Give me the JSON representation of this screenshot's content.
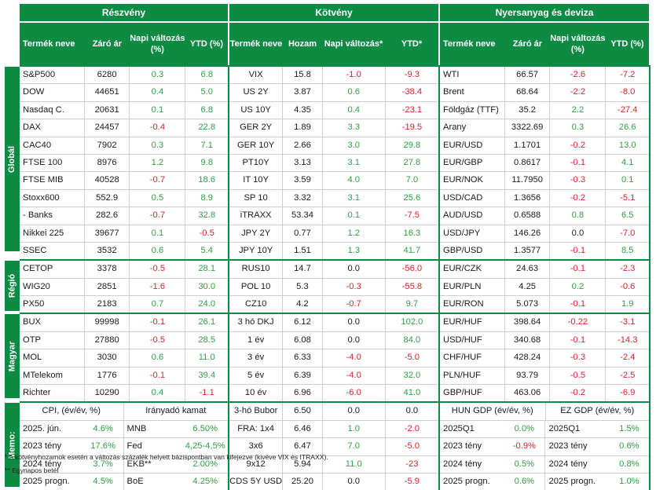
{
  "headers": {
    "stocks": "Részvény",
    "bonds": "Kötvény",
    "commodities": "Nyersanyag és deviza"
  },
  "subheaders": {
    "stocks": [
      "Termék neve",
      "Záró ár",
      "Napi változás (%)",
      "YTD (%)"
    ],
    "bonds": [
      "Termék neve",
      "Hozam",
      "Napi változás*",
      "YTD*"
    ],
    "commodities": [
      "Termék neve",
      "Záró ár",
      "Napi változás (%)",
      "YTD (%)"
    ]
  },
  "sections": [
    {
      "label": "Globál",
      "rows": [
        {
          "s": [
            "S&P500",
            "6280",
            "0.3",
            "6.8"
          ],
          "b": [
            "VIX",
            "15.8",
            "-1.0",
            "-9.3"
          ],
          "c": [
            "WTI",
            "66.57",
            "-2.6",
            "-7.2"
          ]
        },
        {
          "s": [
            "DOW",
            "44651",
            "0.4",
            "5.0"
          ],
          "b": [
            "US 2Y",
            "3.87",
            "0.6",
            "-38.4"
          ],
          "c": [
            "Brent",
            "68.64",
            "-2.2",
            "-8.0"
          ]
        },
        {
          "s": [
            "Nasdaq C.",
            "20631",
            "0.1",
            "6.8"
          ],
          "b": [
            "US 10Y",
            "4.35",
            "0.4",
            "-23.1"
          ],
          "c": [
            "Földgáz (TTF)",
            "35.2",
            "2.2",
            "-27.4"
          ]
        },
        {
          "s": [
            "DAX",
            "24457",
            "-0.4",
            "22.8"
          ],
          "b": [
            "GER 2Y",
            "1.89",
            "3.3",
            "-19.5"
          ],
          "c": [
            "Arany",
            "3322.69",
            "0.3",
            "26.6"
          ]
        },
        {
          "s": [
            "CAC40",
            "7902",
            "0.3",
            "7.1"
          ],
          "b": [
            "GER 10Y",
            "2.66",
            "3.0",
            "29.8"
          ],
          "c": [
            "EUR/USD",
            "1.1701",
            "-0.2",
            "13.0"
          ]
        },
        {
          "s": [
            "FTSE 100",
            "8976",
            "1.2",
            "9.8"
          ],
          "b": [
            "PT10Y",
            "3.13",
            "3.1",
            "27.8"
          ],
          "c": [
            "EUR/GBP",
            "0.8617",
            "-0.1",
            "4.1"
          ]
        },
        {
          "s": [
            "FTSE MIB",
            "40528",
            "-0.7",
            "18.6"
          ],
          "b": [
            "IT 10Y",
            "3.59",
            "4.0",
            "7.0"
          ],
          "c": [
            "EUR/NOK",
            "11.7950",
            "-0.3",
            "0.1"
          ]
        },
        {
          "s": [
            "Stoxx600",
            "552.9",
            "0.5",
            "8.9"
          ],
          "b": [
            "SP 10",
            "3.32",
            "3.1",
            "25.6"
          ],
          "c": [
            "USD/CAD",
            "1.3656",
            "-0.2",
            "-5.1"
          ]
        },
        {
          "s": [
            "- Banks",
            "282.6",
            "-0.7",
            "32.8"
          ],
          "b": [
            "iTRAXX",
            "53.34",
            "0.1",
            "-7.5"
          ],
          "c": [
            "AUD/USD",
            "0.6588",
            "0.8",
            "6.5"
          ]
        },
        {
          "s": [
            "Nikkei 225",
            "39677",
            "0.1",
            "-0.5"
          ],
          "b": [
            "JPY 2Y",
            "0.77",
            "1.2",
            "16.3"
          ],
          "c": [
            "USD/JPY",
            "146.26",
            "0.0",
            "-7.0"
          ]
        },
        {
          "s": [
            "SSEC",
            "3532",
            "0.6",
            "5.4"
          ],
          "b": [
            "JPY 10Y",
            "1.51",
            "1.3",
            "41.7"
          ],
          "c": [
            "GBP/USD",
            "1.3577",
            "-0.1",
            "8.5"
          ]
        }
      ]
    },
    {
      "label": "Régió",
      "rows": [
        {
          "s": [
            "CETOP",
            "3378",
            "-0.5",
            "28.1"
          ],
          "b": [
            "RUS10",
            "14.7",
            "0.0",
            "-56.0"
          ],
          "c": [
            "EUR/CZK",
            "24.63",
            "-0.1",
            "-2.3"
          ]
        },
        {
          "s": [
            "WIG20",
            "2851",
            "-1.6",
            "30.0"
          ],
          "b": [
            "POL 10",
            "5.3",
            "-0.3",
            "-55.8"
          ],
          "c": [
            "EUR/PLN",
            "4.25",
            "0.2",
            "-0.6"
          ]
        },
        {
          "s": [
            "PX50",
            "2183",
            "0.7",
            "24.0"
          ],
          "b": [
            "CZ10",
            "4.2",
            "-0.7",
            "9.7"
          ],
          "c": [
            "EUR/RON",
            "5.073",
            "-0.1",
            "1.9"
          ]
        }
      ]
    },
    {
      "label": "Magyar",
      "rows": [
        {
          "s": [
            "BUX",
            "99998",
            "-0.1",
            "26.1"
          ],
          "b": [
            "3 hó DKJ",
            "6.12",
            "0.0",
            "102.0"
          ],
          "c": [
            "EUR/HUF",
            "398.64",
            "-0.22",
            "-3.1"
          ]
        },
        {
          "s": [
            "OTP",
            "27880",
            "-0.5",
            "28.5"
          ],
          "b": [
            "1 év",
            "6.08",
            "0.0",
            "84.0"
          ],
          "c": [
            "USD/HUF",
            "340.68",
            "-0.1",
            "-14.3"
          ]
        },
        {
          "s": [
            "MOL",
            "3030",
            "0.6",
            "11.0"
          ],
          "b": [
            "3 év",
            "6.33",
            "-4.0",
            "-5.0"
          ],
          "c": [
            "CHF/HUF",
            "428.24",
            "-0.3",
            "-2.4"
          ]
        },
        {
          "s": [
            "MTelekom",
            "1776",
            "-0.1",
            "39.4"
          ],
          "b": [
            "5 év",
            "6.39",
            "-4.0",
            "32.0"
          ],
          "c": [
            "PLN/HUF",
            "93.79",
            "-0.5",
            "-2.5"
          ]
        },
        {
          "s": [
            "Richter",
            "10290",
            "0.4",
            "-1.1"
          ],
          "b": [
            "10 év",
            "6.96",
            "-6.0",
            "41.0"
          ],
          "c": [
            "GBP/HUF",
            "463.06",
            "-0.2",
            "-6.9"
          ]
        }
      ]
    }
  ],
  "memo": {
    "label": "Memo:",
    "rows": [
      {
        "cpi": [
          "CPI, (év/év, %)",
          ""
        ],
        "rate": [
          "Irányadó kamat",
          ""
        ],
        "b": [
          "3-hó Bubor",
          "6.50",
          "0.0",
          "0.0"
        ],
        "hun": [
          "HUN GDP (év/év, %)",
          ""
        ],
        "ez": [
          "EZ GDP (év/év, %)",
          ""
        ]
      },
      {
        "cpi": [
          "2025. jún.",
          "4.6%"
        ],
        "rate": [
          "MNB",
          "6.50%"
        ],
        "b": [
          "FRA:    1x4",
          "6.46",
          "1.0",
          "-2.0"
        ],
        "hun": [
          "2025Q1",
          "0.0%"
        ],
        "ez": [
          "2025Q1",
          "1.5%"
        ]
      },
      {
        "cpi": [
          "2023 tény",
          "17.6%"
        ],
        "rate": [
          "Fed",
          "4,25-4,5%"
        ],
        "b": [
          "3x6",
          "6.47",
          "7.0",
          "-5.0"
        ],
        "hun": [
          "2023 tény",
          "-0.9%"
        ],
        "ez": [
          "2023 tény",
          "0.6%"
        ]
      },
      {
        "cpi": [
          "2024 tény",
          "3.7%"
        ],
        "rate": [
          "EKB**",
          "2.00%"
        ],
        "b": [
          "9x12",
          "5.94",
          "11.0",
          "-23"
        ],
        "hun": [
          "2024 tény",
          "0.5%"
        ],
        "ez": [
          "2024 tény",
          "0.8%"
        ]
      },
      {
        "cpi": [
          "2025 progn.",
          "4.5%"
        ],
        "rate": [
          "BoE",
          "4.25%"
        ],
        "b": [
          "CDS 5Y USD",
          "25.20",
          "0.0",
          "-5.9"
        ],
        "hun": [
          "2025 progn.",
          "0.6%"
        ],
        "ez": [
          "2025 progn.",
          "1.0%"
        ]
      }
    ]
  },
  "footnotes": [
    "* A kötvényhozamok esetén a változás százalék helyett bázispontban van kifejezve (kivéve VIX és ITRAXX).",
    "** Egynapos betét"
  ],
  "colors": {
    "accent": "#0e8a43",
    "positive": "#2ea043",
    "negative": "#d8232a"
  }
}
